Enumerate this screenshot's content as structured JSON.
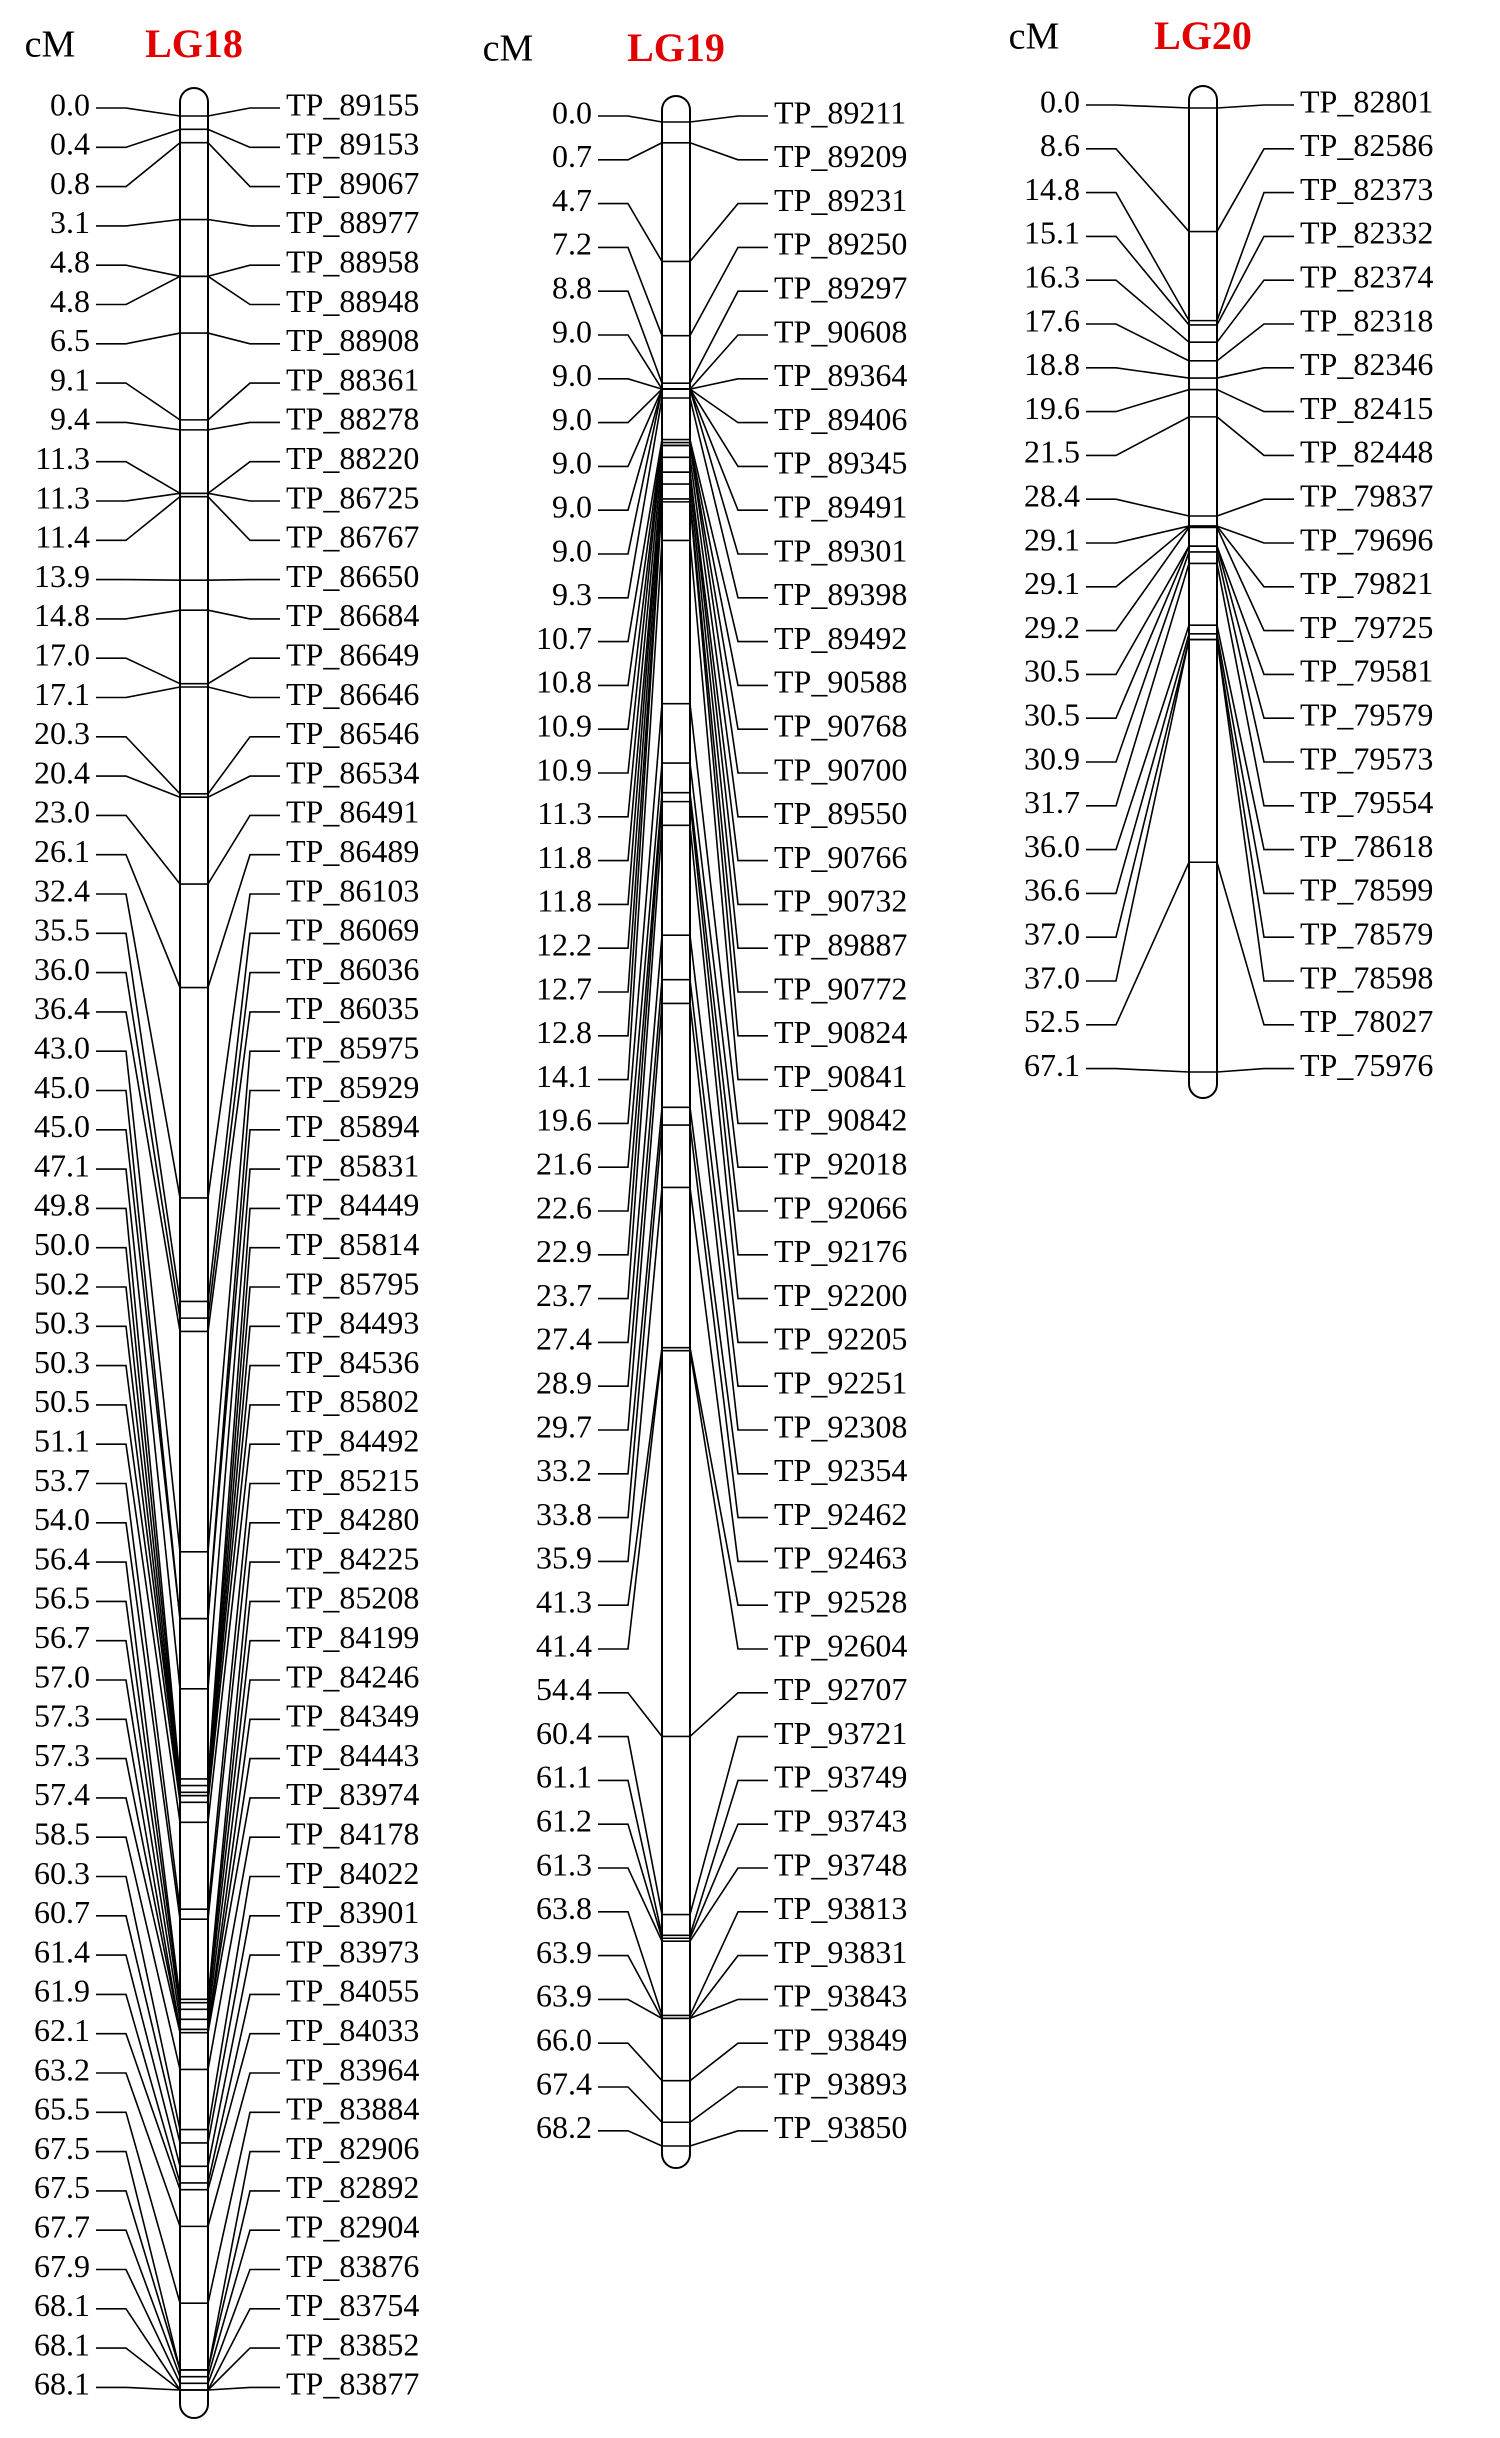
{
  "groups": [
    {
      "unit": "cM",
      "title": "LG18",
      "positions": [
        "0.0",
        "0.4",
        "0.8",
        "3.1",
        "4.8",
        "4.8",
        "6.5",
        "9.1",
        "9.4",
        "11.3",
        "11.3",
        "11.4",
        "13.9",
        "14.8",
        "17.0",
        "17.1",
        "20.3",
        "20.4",
        "23.0",
        "26.1",
        "32.4",
        "35.5",
        "36.0",
        "36.4",
        "43.0",
        "45.0",
        "45.0",
        "47.1",
        "49.8",
        "50.0",
        "50.2",
        "50.3",
        "50.3",
        "50.5",
        "51.1",
        "53.7",
        "54.0",
        "56.4",
        "56.5",
        "56.7",
        "57.0",
        "57.3",
        "57.3",
        "57.4",
        "58.5",
        "60.3",
        "60.7",
        "61.4",
        "61.9",
        "62.1",
        "63.2",
        "65.5",
        "67.5",
        "67.5",
        "67.7",
        "67.9",
        "68.1",
        "68.1",
        "68.1"
      ],
      "markers": [
        "TP_89155",
        "TP_89153",
        "TP_89067",
        "TP_88977",
        "TP_88958",
        "TP_88948",
        "TP_88908",
        "TP_88361",
        "TP_88278",
        "TP_88220",
        "TP_86725",
        "TP_86767",
        "TP_86650",
        "TP_86684",
        "TP_86649",
        "TP_86646",
        "TP_86546",
        "TP_86534",
        "TP_86491",
        "TP_86489",
        "TP_86103",
        "TP_86069",
        "TP_86036",
        "TP_86035",
        "TP_85975",
        "TP_85929",
        "TP_85894",
        "TP_85831",
        "TP_84449",
        "TP_85814",
        "TP_85795",
        "TP_84493",
        "TP_84536",
        "TP_85802",
        "TP_84492",
        "TP_85215",
        "TP_84280",
        "TP_84225",
        "TP_85208",
        "TP_84199",
        "TP_84246",
        "TP_84349",
        "TP_84443",
        "TP_83974",
        "TP_84178",
        "TP_84022",
        "TP_83901",
        "TP_83973",
        "TP_84055",
        "TP_84033",
        "TP_83964",
        "TP_83884",
        "TP_82906",
        "TP_82892",
        "TP_82904",
        "TP_83876",
        "TP_83754",
        "TP_83852",
        "TP_83877"
      ]
    },
    {
      "unit": "cM",
      "title": "LG19",
      "positions": [
        "0.0",
        "0.7",
        "4.7",
        "7.2",
        "8.8",
        "9.0",
        "9.0",
        "9.0",
        "9.0",
        "9.0",
        "9.0",
        "9.3",
        "10.7",
        "10.8",
        "10.9",
        "10.9",
        "11.3",
        "11.8",
        "11.8",
        "12.2",
        "12.7",
        "12.8",
        "14.1",
        "19.6",
        "21.6",
        "22.6",
        "22.9",
        "23.7",
        "27.4",
        "28.9",
        "29.7",
        "33.2",
        "33.8",
        "35.9",
        "41.3",
        "41.4",
        "54.4",
        "60.4",
        "61.1",
        "61.2",
        "61.3",
        "63.8",
        "63.9",
        "63.9",
        "66.0",
        "67.4",
        "68.2"
      ],
      "markers": [
        "TP_89211",
        "TP_89209",
        "TP_89231",
        "TP_89250",
        "TP_89297",
        "TP_90608",
        "TP_89364",
        "TP_89406",
        "TP_89345",
        "TP_89491",
        "TP_89301",
        "TP_89398",
        "TP_89492",
        "TP_90588",
        "TP_90768",
        "TP_90700",
        "TP_89550",
        "TP_90766",
        "TP_90732",
        "TP_89887",
        "TP_90772",
        "TP_90824",
        "TP_90841",
        "TP_90842",
        "TP_92018",
        "TP_92066",
        "TP_92176",
        "TP_92200",
        "TP_92205",
        "TP_92251",
        "TP_92308",
        "TP_92354",
        "TP_92462",
        "TP_92463",
        "TP_92528",
        "TP_92604",
        "TP_92707",
        "TP_93721",
        "TP_93749",
        "TP_93743",
        "TP_93748",
        "TP_93813",
        "TP_93831",
        "TP_93843",
        "TP_93849",
        "TP_93893",
        "TP_93850"
      ]
    },
    {
      "unit": "cM",
      "title": "LG20",
      "positions": [
        "0.0",
        "8.6",
        "14.8",
        "15.1",
        "16.3",
        "17.6",
        "18.8",
        "19.6",
        "21.5",
        "28.4",
        "29.1",
        "29.1",
        "29.2",
        "30.5",
        "30.5",
        "30.9",
        "31.7",
        "36.0",
        "36.6",
        "37.0",
        "37.0",
        "52.5",
        "67.1"
      ],
      "markers": [
        "TP_82801",
        "TP_82586",
        "TP_82373",
        "TP_82332",
        "TP_82374",
        "TP_82318",
        "TP_82346",
        "TP_82415",
        "TP_82448",
        "TP_79837",
        "TP_79696",
        "TP_79821",
        "TP_79725",
        "TP_79581",
        "TP_79579",
        "TP_79573",
        "TP_79554",
        "TP_78618",
        "TP_78599",
        "TP_78579",
        "TP_78598",
        "TP_78027",
        "TP_75976"
      ]
    }
  ]
}
